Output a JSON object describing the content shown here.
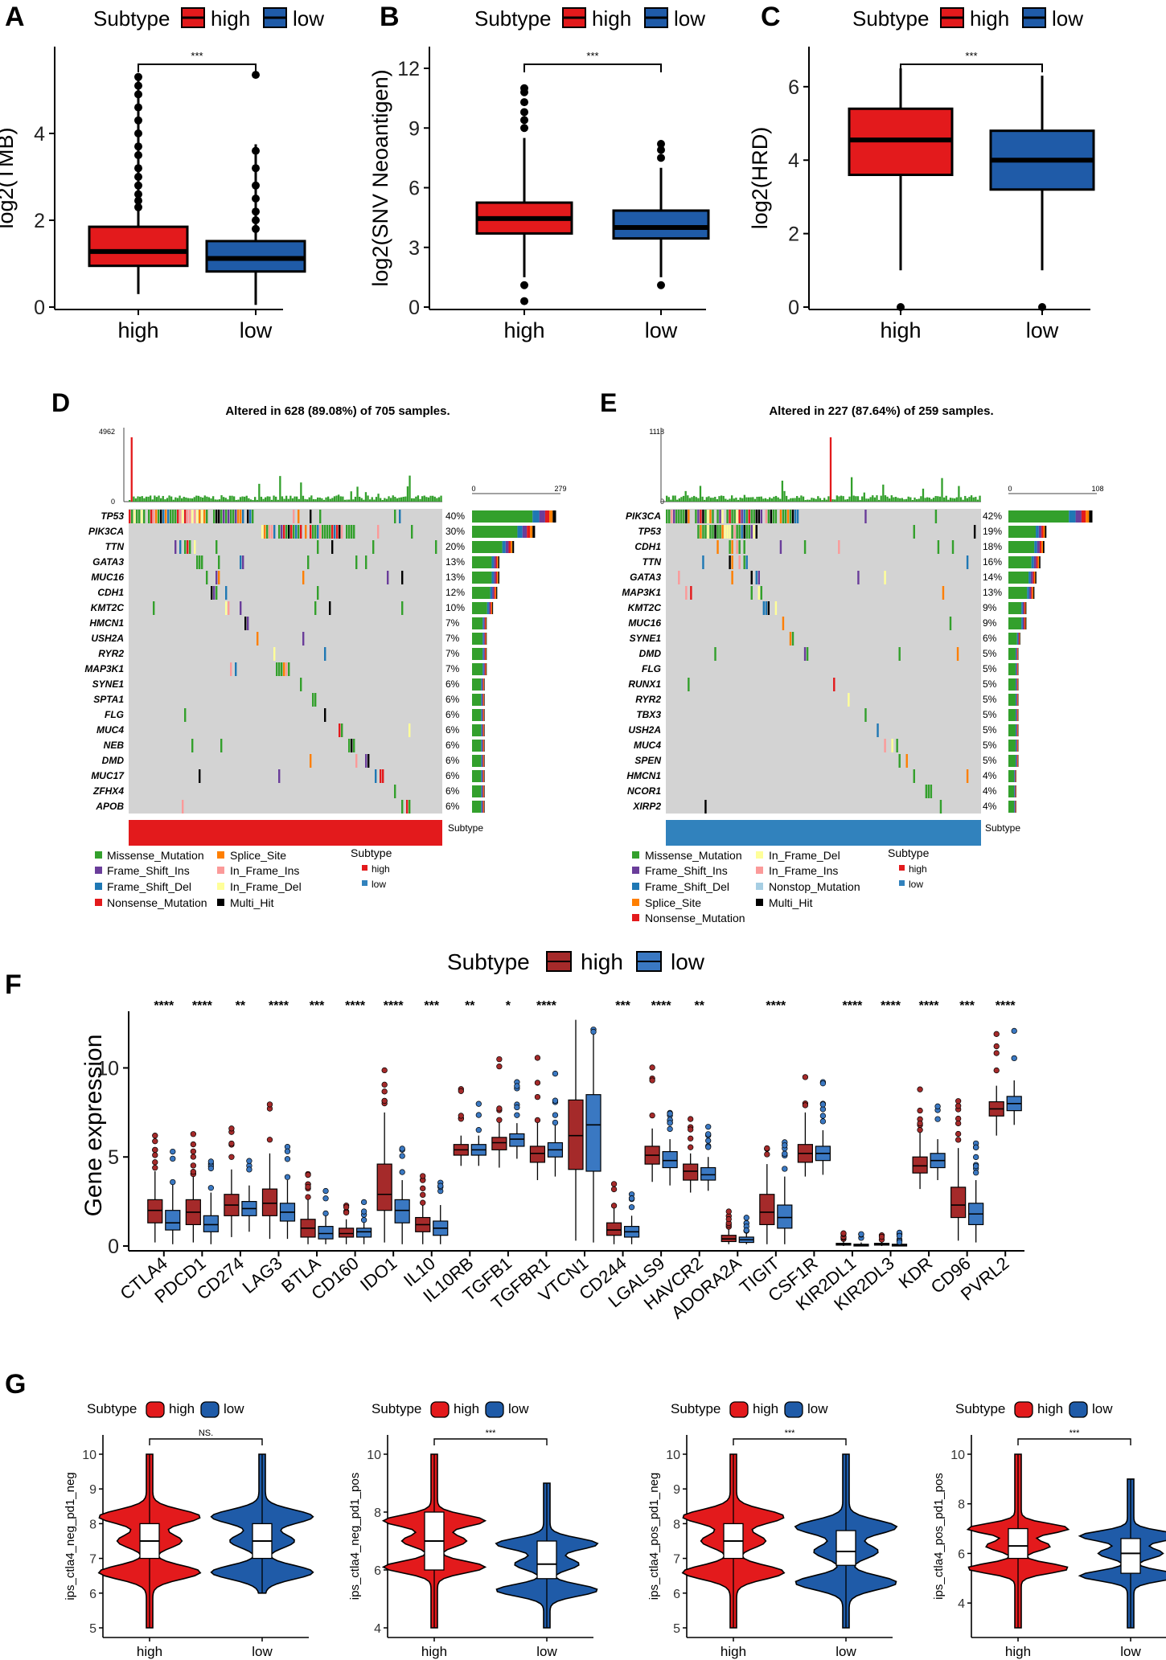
{
  "colors": {
    "high": "#E31A1C",
    "low": "#1F5BA8",
    "high_dark": "#A52A2A",
    "low_f": "#3A78C2",
    "missense": "#33A02C",
    "grey": "#D3D3D3",
    "sub_high": "#E31A1C",
    "sub_low": "#3182BD"
  },
  "panels": {
    "A": {
      "letter": "A",
      "legend_title": "Subtype",
      "legend_high": "high",
      "legend_low": "low",
      "sig": "***"
    },
    "B": {
      "letter": "B",
      "legend_title": "Subtype",
      "legend_high": "high",
      "legend_low": "low",
      "sig": "***"
    },
    "C": {
      "letter": "C",
      "legend_title": "Subtype",
      "legend_high": "high",
      "legend_low": "low",
      "sig": "***"
    },
    "D": {
      "letter": "D",
      "title": "Altered in 628 (89.08%) of 705 samples.",
      "top_max": "4962",
      "top_min": "0",
      "side_min": "0",
      "side_max": "279",
      "subtype_label": "Subtype",
      "legend_title": "Subtype",
      "legend_high": "high",
      "legend_low": "low",
      "legend_items": [
        "Missense_Mutation",
        "Frame_Shift_Ins",
        "Frame_Shift_Del",
        "Nonsense_Mutation",
        "Splice_Site",
        "In_Frame_Ins",
        "In_Frame_Del",
        "Multi_Hit"
      ]
    },
    "E": {
      "letter": "E",
      "title": "Altered in 227 (87.64%) of 259 samples.",
      "top_max": "1118",
      "top_min": "0",
      "side_min": "0",
      "side_max": "108",
      "subtype_label": "Subtype",
      "legend_title": "Subtype",
      "legend_high": "high",
      "legend_low": "low",
      "legend_items": [
        "Missense_Mutation",
        "Frame_Shift_Ins",
        "Frame_Shift_Del",
        "Splice_Site",
        "Nonsense_Mutation",
        "In_Frame_Del",
        "In_Frame_Ins",
        "Nonstop_Mutation",
        "Multi_Hit"
      ]
    },
    "F": {
      "letter": "F",
      "legend_title": "Subtype",
      "legend_high": "high",
      "legend_low": "low"
    },
    "G": {
      "letter": "G"
    }
  },
  "chart_data": [
    {
      "panel": "A",
      "type": "box",
      "title": "",
      "xlabel": "",
      "ylabel": "log2(TMB)",
      "ylim": [
        0,
        5.5
      ],
      "yticks": [
        0,
        2,
        4
      ],
      "categories": [
        "high",
        "low"
      ],
      "significance": "***",
      "series": [
        {
          "name": "high",
          "whisker_low": 0.3,
          "q1": 0.95,
          "median": 1.28,
          "q3": 1.85,
          "whisker_high": 5.25
        },
        {
          "name": "low",
          "whisker_low": 0.05,
          "q1": 0.82,
          "median": 1.12,
          "q3": 1.52,
          "whisker_high": 3.75
        }
      ]
    },
    {
      "panel": "B",
      "type": "box",
      "xlabel": "",
      "ylabel": "log2(SNV Neoantigen)",
      "ylim": [
        0,
        12
      ],
      "yticks": [
        0,
        3,
        6,
        9,
        12
      ],
      "categories": [
        "high",
        "low"
      ],
      "significance": "***",
      "series": [
        {
          "name": "high",
          "whisker_low": 1.5,
          "q1": 3.7,
          "median": 4.45,
          "q3": 5.25,
          "whisker_high": 8.5
        },
        {
          "name": "low",
          "whisker_low": 1.5,
          "q1": 3.45,
          "median": 4.0,
          "q3": 4.85,
          "whisker_high": 7.0
        }
      ]
    },
    {
      "panel": "C",
      "type": "box",
      "xlabel": "",
      "ylabel": "log2(HRD)",
      "ylim": [
        0,
        6.5
      ],
      "yticks": [
        0,
        2,
        4,
        6
      ],
      "categories": [
        "high",
        "low"
      ],
      "significance": "***",
      "series": [
        {
          "name": "high",
          "whisker_low": 1.0,
          "q1": 3.6,
          "median": 4.55,
          "q3": 5.4,
          "whisker_high": 6.5
        },
        {
          "name": "low",
          "whisker_low": 1.0,
          "q1": 3.2,
          "median": 4.0,
          "q3": 4.8,
          "whisker_high": 6.3
        }
      ]
    },
    {
      "panel": "D",
      "type": "heatmap",
      "title": "Altered in 628 (89.08%) of 705 samples.",
      "genes": [
        "TP53",
        "PIK3CA",
        "TTN",
        "GATA3",
        "MUC16",
        "CDH1",
        "KMT2C",
        "HMCN1",
        "USH2A",
        "RYR2",
        "MAP3K1",
        "SYNE1",
        "SPTA1",
        "FLG",
        "MUC4",
        "NEB",
        "DMD",
        "MUC17",
        "ZFHX4",
        "APOB"
      ],
      "percents": [
        "40%",
        "30%",
        "20%",
        "13%",
        "13%",
        "12%",
        "10%",
        "7%",
        "7%",
        "7%",
        "7%",
        "6%",
        "6%",
        "6%",
        "6%",
        "6%",
        "6%",
        "6%",
        "6%",
        "6%"
      ],
      "values": [
        40,
        30,
        20,
        13,
        13,
        12,
        10,
        7,
        7,
        7,
        7,
        6,
        6,
        6,
        6,
        6,
        6,
        6,
        6,
        6
      ],
      "tmb_max": 4962,
      "side_max": 279,
      "subtype": "high"
    },
    {
      "panel": "E",
      "type": "heatmap",
      "title": "Altered in 227 (87.64%) of 259 samples.",
      "genes": [
        "PIK3CA",
        "TP53",
        "CDH1",
        "TTN",
        "GATA3",
        "MAP3K1",
        "KMT2C",
        "MUC16",
        "SYNE1",
        "DMD",
        "FLG",
        "RUNX1",
        "RYR2",
        "TBX3",
        "USH2A",
        "MUC4",
        "SPEN",
        "HMCN1",
        "NCOR1",
        "XIRP2"
      ],
      "percents": [
        "42%",
        "19%",
        "18%",
        "16%",
        "14%",
        "13%",
        "9%",
        "9%",
        "6%",
        "5%",
        "5%",
        "5%",
        "5%",
        "5%",
        "5%",
        "5%",
        "5%",
        "4%",
        "4%",
        "4%"
      ],
      "values": [
        42,
        19,
        18,
        16,
        14,
        13,
        9,
        9,
        6,
        5,
        5,
        5,
        5,
        5,
        5,
        5,
        5,
        4,
        4,
        4
      ],
      "tmb_max": 1118,
      "side_max": 108,
      "subtype": "low"
    },
    {
      "panel": "F",
      "type": "box",
      "xlabel": "",
      "ylabel": "Gene expression",
      "ylim": [
        0,
        13
      ],
      "yticks": [
        0,
        5,
        10
      ],
      "categories": [
        "CTLA4",
        "PDCD1",
        "CD274",
        "LAG3",
        "BTLA",
        "CD160",
        "IDO1",
        "IL10",
        "IL10RB",
        "TGFB1",
        "TGFBR1",
        "VTCN1",
        "CD244",
        "LGALS9",
        "HAVCR2",
        "ADORA2A",
        "TIGIT",
        "CSF1R",
        "KIR2DL1",
        "KIR2DL3",
        "KDR",
        "CD96",
        "PVRL2"
      ],
      "significance": [
        "****",
        "****",
        "**",
        "****",
        "***",
        "****",
        "****",
        "***",
        "**",
        "*",
        "****",
        "",
        "***",
        "****",
        "**",
        "",
        "****",
        "",
        "****",
        "****",
        "****",
        "***",
        "****"
      ],
      "series": [
        {
          "name": "high",
          "q1": [
            1.3,
            1.2,
            1.7,
            1.7,
            0.5,
            0.5,
            2.0,
            0.8,
            5.1,
            5.4,
            4.7,
            4.3,
            0.6,
            4.6,
            3.7,
            0.25,
            1.2,
            4.7,
            0.05,
            0.05,
            4.1,
            1.6,
            7.3
          ],
          "median": [
            2.0,
            1.9,
            2.3,
            2.4,
            1.0,
            0.7,
            2.9,
            1.2,
            5.4,
            5.8,
            5.2,
            6.2,
            0.9,
            5.1,
            4.2,
            0.4,
            1.9,
            5.2,
            0.1,
            0.1,
            4.5,
            2.3,
            7.7
          ],
          "q3": [
            2.6,
            2.6,
            2.9,
            3.2,
            1.5,
            1.0,
            4.6,
            1.6,
            5.7,
            6.1,
            5.6,
            8.2,
            1.3,
            5.6,
            4.6,
            0.6,
            2.9,
            5.7,
            0.15,
            0.15,
            5.0,
            3.3,
            8.1
          ],
          "lo": [
            0.2,
            0.2,
            0.5,
            0.4,
            0.1,
            0.1,
            0.2,
            0.1,
            4.5,
            4.4,
            3.7,
            0.3,
            0.1,
            3.6,
            3.0,
            0.1,
            0.1,
            3.9,
            0.0,
            0.0,
            3.2,
            0.3,
            6.2
          ],
          "hi": [
            4.2,
            4.0,
            4.3,
            5.2,
            2.6,
            1.5,
            7.5,
            2.4,
            6.2,
            7.0,
            7.0,
            12.7,
            2.2,
            6.6,
            5.2,
            1.0,
            4.6,
            7.5,
            0.3,
            0.3,
            6.5,
            5.5,
            9.0
          ]
        },
        {
          "name": "low",
          "q1": [
            0.9,
            0.8,
            1.7,
            1.4,
            0.4,
            0.5,
            1.3,
            0.6,
            5.1,
            5.6,
            5.0,
            4.2,
            0.5,
            4.4,
            3.7,
            0.2,
            1.0,
            4.8,
            0.0,
            0.0,
            4.4,
            1.2,
            7.6
          ],
          "median": [
            1.3,
            1.2,
            2.1,
            1.9,
            0.7,
            0.8,
            2.0,
            1.0,
            5.4,
            6.0,
            5.4,
            6.8,
            0.8,
            4.8,
            4.0,
            0.35,
            1.6,
            5.2,
            0.05,
            0.05,
            4.8,
            1.8,
            8.0
          ],
          "q3": [
            2.0,
            1.7,
            2.5,
            2.4,
            1.1,
            1.0,
            2.6,
            1.4,
            5.7,
            6.3,
            5.8,
            8.5,
            1.1,
            5.3,
            4.4,
            0.5,
            2.3,
            5.6,
            0.1,
            0.1,
            5.2,
            2.4,
            8.4
          ],
          "lo": [
            0.1,
            0.1,
            0.8,
            0.4,
            0.1,
            0.1,
            0.1,
            0.1,
            4.5,
            4.9,
            3.9,
            0.2,
            0.1,
            3.4,
            3.1,
            0.1,
            0.1,
            4.0,
            0.0,
            0.0,
            3.7,
            0.2,
            6.8
          ],
          "hi": [
            3.5,
            3.0,
            3.4,
            3.7,
            1.8,
            1.4,
            3.7,
            2.3,
            6.2,
            6.9,
            6.9,
            12.0,
            1.7,
            6.0,
            5.0,
            0.8,
            3.9,
            6.5,
            0.2,
            0.2,
            6.0,
            3.7,
            9.3
          ]
        }
      ]
    },
    {
      "panel": "G1",
      "type": "violin",
      "ylabel": "ips_ctla4_neg_pd1_neg",
      "ylim": [
        5,
        10
      ],
      "yticks": [
        5,
        6,
        7,
        8,
        9,
        10
      ],
      "categories": [
        "high",
        "low"
      ],
      "significance": "NS.",
      "series": [
        {
          "name": "high",
          "q1": 7.0,
          "median": 7.5,
          "q3": 8.0,
          "min": 5,
          "max": 10
        },
        {
          "name": "low",
          "q1": 7.0,
          "median": 7.5,
          "q3": 8.0,
          "min": 6,
          "max": 10
        }
      ]
    },
    {
      "panel": "G2",
      "type": "violin",
      "ylabel": "ips_ctla4_neg_pd1_pos",
      "ylim": [
        4,
        10
      ],
      "yticks": [
        4,
        6,
        8,
        10
      ],
      "categories": [
        "high",
        "low"
      ],
      "significance": "***",
      "series": [
        {
          "name": "high",
          "q1": 6.0,
          "median": 7.0,
          "q3": 8.0,
          "min": 4,
          "max": 10
        },
        {
          "name": "low",
          "q1": 5.7,
          "median": 6.2,
          "q3": 7.0,
          "min": 4,
          "max": 9
        }
      ]
    },
    {
      "panel": "G3",
      "type": "violin",
      "ylabel": "ips_ctla4_pos_pd1_neg",
      "ylim": [
        5,
        10
      ],
      "yticks": [
        5,
        6,
        7,
        8,
        9,
        10
      ],
      "categories": [
        "high",
        "low"
      ],
      "significance": "***",
      "series": [
        {
          "name": "high",
          "q1": 7.0,
          "median": 7.5,
          "q3": 8.0,
          "min": 5,
          "max": 10
        },
        {
          "name": "low",
          "q1": 6.8,
          "median": 7.2,
          "q3": 7.8,
          "min": 5,
          "max": 10
        }
      ]
    },
    {
      "panel": "G4",
      "type": "violin",
      "ylabel": "ips_ctla4_pos_pd1_pos",
      "ylim": [
        3,
        10
      ],
      "yticks": [
        4,
        6,
        8,
        10
      ],
      "categories": [
        "high",
        "low"
      ],
      "significance": "***",
      "series": [
        {
          "name": "high",
          "q1": 5.8,
          "median": 6.3,
          "q3": 7.0,
          "min": 3,
          "max": 10
        },
        {
          "name": "low",
          "q1": 5.2,
          "median": 6.0,
          "q3": 6.6,
          "min": 3,
          "max": 9
        }
      ]
    }
  ]
}
